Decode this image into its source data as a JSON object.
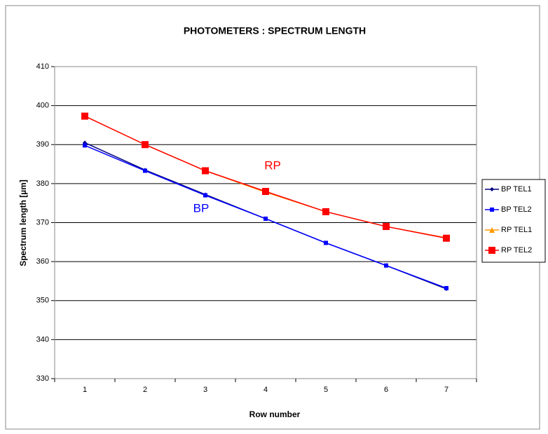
{
  "chart_data": {
    "type": "line",
    "title": "PHOTOMETERS : SPECTRUM LENGTH",
    "x_label": "Row number",
    "y_label": "Spectrum length [µm]",
    "categories": [
      "1",
      "2",
      "3",
      "4",
      "5",
      "6",
      "7"
    ],
    "series": [
      {
        "name": "BP TEL1",
        "color": "#000080",
        "marker": "diamond",
        "values": [
          390.5,
          383.5,
          377.2,
          371,
          364.8,
          359,
          353
        ]
      },
      {
        "name": "BP TEL2",
        "color": "#0000ff",
        "marker": "square",
        "values": [
          389.8,
          383.3,
          377,
          371,
          364.8,
          359,
          353.2
        ]
      },
      {
        "name": "RP TEL1",
        "color": "#ff9900",
        "marker": "triangle",
        "values": [
          397.3,
          390,
          383.3,
          377.8,
          372.8,
          369,
          366.1
        ]
      },
      {
        "name": "RP TEL2",
        "color": "#ff0000",
        "marker": "square",
        "values": [
          397.3,
          390,
          383.3,
          378,
          372.8,
          369,
          366
        ]
      }
    ],
    "annotations": [
      {
        "text": "RP",
        "color": "#ff0000"
      },
      {
        "text": "BP",
        "color": "#0000ff"
      }
    ],
    "ylim": [
      330,
      410
    ],
    "yticks": [
      330,
      340,
      350,
      360,
      370,
      380,
      390,
      400,
      410
    ],
    "grid": true,
    "legend": "right"
  }
}
